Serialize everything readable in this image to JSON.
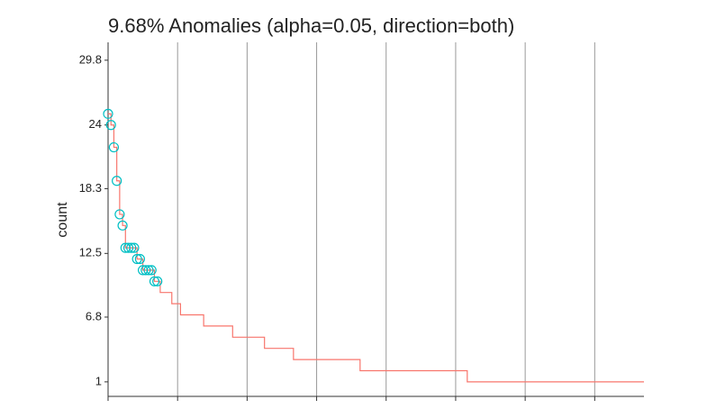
{
  "chart_data": {
    "type": "line",
    "title": "9.68% Anomalies (alpha=0.05, direction=both)",
    "y_label": "count",
    "step": true,
    "grid": true,
    "xlim": [
      1,
      186
    ],
    "xticks": [
      1,
      25,
      49,
      73,
      97,
      121,
      145,
      169
    ],
    "ylim": [
      -0.3,
      31.4
    ],
    "yticks": [
      1,
      6.8,
      12.5,
      18.3,
      24,
      29.8
    ],
    "series": [
      {
        "color": "#f8766d",
        "mark": "line",
        "values": [
          25,
          24,
          22,
          19,
          16,
          15,
          13,
          13,
          13,
          13,
          12,
          12,
          11,
          11,
          11,
          11,
          10,
          10,
          9,
          9,
          9,
          9,
          8,
          8,
          8,
          7,
          7,
          7,
          7,
          7,
          7,
          7,
          7,
          6,
          6,
          6,
          6,
          6,
          6,
          6,
          6,
          6,
          6,
          5,
          5,
          5,
          5,
          5,
          5,
          5,
          5,
          5,
          5,
          5,
          4,
          4,
          4,
          4,
          4,
          4,
          4,
          4,
          4,
          4,
          3,
          3,
          3,
          3,
          3,
          3,
          3,
          3,
          3,
          3,
          3,
          3,
          3,
          3,
          3,
          3,
          3,
          3,
          3,
          3,
          3,
          3,
          3,
          2,
          2,
          2,
          2,
          2,
          2,
          2,
          2,
          2,
          2,
          2,
          2,
          2,
          2,
          2,
          2,
          2,
          2,
          2,
          2,
          2,
          2,
          2,
          2,
          2,
          2,
          2,
          2,
          2,
          2,
          2,
          2,
          2,
          2,
          2,
          2,
          2,
          1,
          1,
          1,
          1,
          1,
          1,
          1,
          1,
          1,
          1,
          1,
          1,
          1,
          1,
          1,
          1,
          1,
          1,
          1,
          1,
          1,
          1,
          1,
          1,
          1,
          1,
          1,
          1,
          1,
          1,
          1,
          1,
          1,
          1,
          1,
          1,
          1,
          1,
          1,
          1,
          1,
          1,
          1,
          1,
          1,
          1,
          1,
          1,
          1,
          1,
          1,
          1,
          1,
          1,
          1,
          1,
          1,
          1,
          1,
          1,
          1,
          1
        ]
      },
      {
        "color": "#00bfc4",
        "mark": "circle",
        "values": [
          25,
          24,
          22,
          19,
          16,
          15,
          13,
          13,
          13,
          13,
          12,
          12,
          11,
          11,
          11,
          11,
          10,
          10,
          null,
          null,
          null,
          null,
          null,
          null,
          null,
          null,
          null,
          null,
          null,
          null,
          null,
          null,
          null,
          null,
          null,
          null,
          null,
          null,
          null,
          null,
          null,
          null,
          null,
          null,
          null,
          null,
          null,
          null,
          null,
          null,
          null,
          null,
          null,
          null,
          null,
          null,
          null,
          null,
          null,
          null,
          null,
          null,
          null,
          null,
          null,
          null,
          null,
          null,
          null,
          null,
          null,
          null,
          null,
          null,
          null,
          null,
          null,
          null,
          null,
          null,
          null,
          null,
          null,
          null,
          null,
          null,
          null,
          null,
          null,
          null,
          null,
          null,
          null,
          null,
          null,
          null,
          null,
          null,
          null,
          null,
          null,
          null,
          null,
          null,
          null,
          null,
          null,
          null,
          null,
          null,
          null,
          null,
          null,
          null,
          null,
          null,
          null,
          null,
          null,
          null,
          null,
          null,
          null,
          null,
          null,
          null,
          null,
          null,
          null,
          null,
          null,
          null,
          null,
          null,
          null,
          null,
          null,
          null,
          null,
          null,
          null,
          null,
          null,
          null,
          null,
          null,
          null,
          null,
          null,
          null,
          null,
          null,
          null,
          null,
          null,
          null,
          null,
          null,
          null,
          null,
          null,
          null,
          null,
          null,
          null,
          null,
          null,
          null,
          null,
          null,
          null,
          null,
          null,
          null,
          null,
          null,
          null,
          null,
          null,
          null,
          null,
          null,
          null,
          null,
          null,
          null,
          null,
          null
        ]
      }
    ]
  }
}
